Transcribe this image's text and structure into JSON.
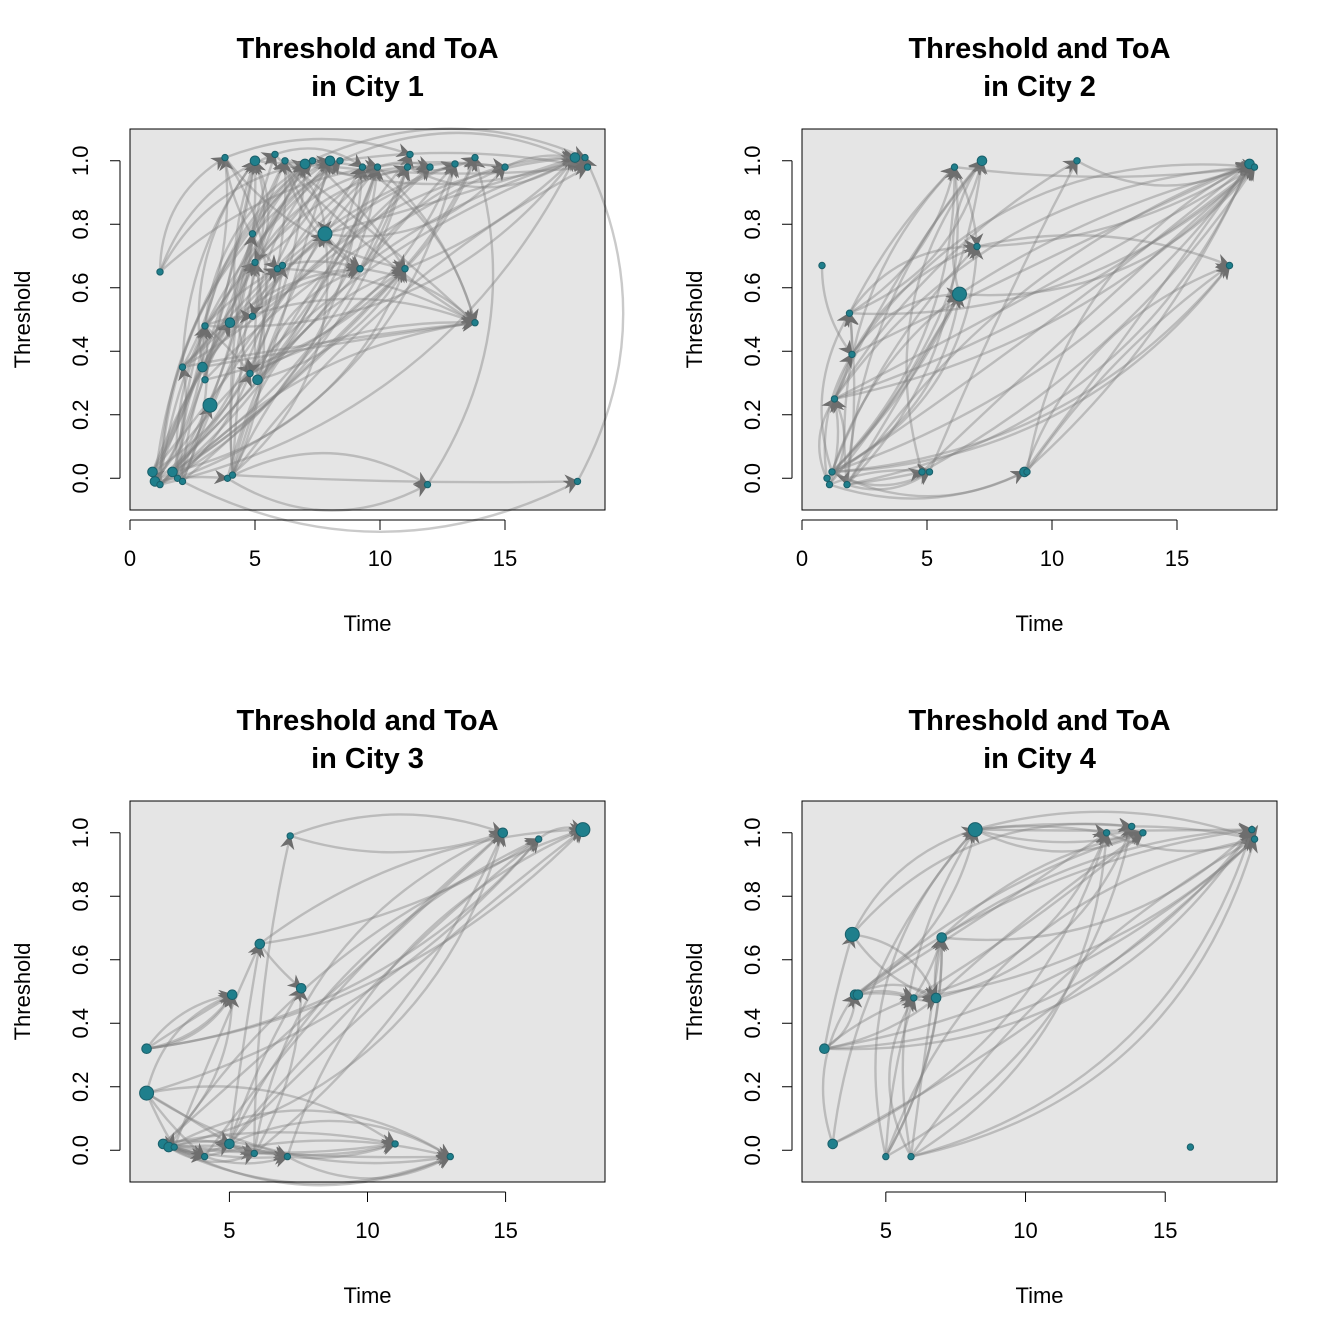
{
  "colors": {
    "panel_bg": "#e5e5e5",
    "edge": "#808080",
    "node": "#1f7f8c",
    "node_stroke": "#1a5f6a"
  },
  "chart_data": [
    {
      "type": "scatter",
      "title": "Threshold and ToA\nin City 1",
      "xlabel": "Time",
      "ylabel": "Threshold",
      "xlim": [
        0,
        19
      ],
      "ylim": [
        -0.1,
        1.1
      ],
      "xticks": [
        0,
        5,
        10,
        15
      ],
      "yticks": [
        0.0,
        0.2,
        0.4,
        0.6,
        0.8,
        1.0
      ],
      "xtick_labels": [
        "0",
        "5",
        "10",
        "15"
      ],
      "ytick_labels": [
        "0.0",
        "0.2",
        "0.4",
        "0.6",
        "0.8",
        "1.0"
      ],
      "grid": false,
      "points": [
        {
          "x": 0.9,
          "y": 0.02,
          "s": 2
        },
        {
          "x": 1.0,
          "y": -0.01,
          "s": 2
        },
        {
          "x": 1.2,
          "y": -0.02,
          "s": 1
        },
        {
          "x": 1.7,
          "y": 0.02,
          "s": 2
        },
        {
          "x": 1.9,
          "y": 0.0,
          "s": 1
        },
        {
          "x": 2.1,
          "y": -0.01,
          "s": 1
        },
        {
          "x": 1.2,
          "y": 0.65,
          "s": 1
        },
        {
          "x": 2.1,
          "y": 0.35,
          "s": 1
        },
        {
          "x": 2.9,
          "y": 0.35,
          "s": 2
        },
        {
          "x": 3.0,
          "y": 0.31,
          "s": 1
        },
        {
          "x": 3.2,
          "y": 0.23,
          "s": 3
        },
        {
          "x": 3.0,
          "y": 0.48,
          "s": 1
        },
        {
          "x": 3.9,
          "y": 0.0,
          "s": 1
        },
        {
          "x": 4.0,
          "y": 0.49,
          "s": 2
        },
        {
          "x": 4.1,
          "y": 0.01,
          "s": 1
        },
        {
          "x": 3.8,
          "y": 1.01,
          "s": 1
        },
        {
          "x": 4.8,
          "y": 0.33,
          "s": 1
        },
        {
          "x": 4.9,
          "y": 0.51,
          "s": 1
        },
        {
          "x": 4.9,
          "y": 0.77,
          "s": 1
        },
        {
          "x": 5.0,
          "y": 0.68,
          "s": 1
        },
        {
          "x": 5.0,
          "y": 1.0,
          "s": 2
        },
        {
          "x": 5.1,
          "y": 0.31,
          "s": 2
        },
        {
          "x": 5.9,
          "y": 0.66,
          "s": 1
        },
        {
          "x": 6.1,
          "y": 0.67,
          "s": 1
        },
        {
          "x": 5.8,
          "y": 1.02,
          "s": 1
        },
        {
          "x": 6.2,
          "y": 1.0,
          "s": 1
        },
        {
          "x": 7.0,
          "y": 0.99,
          "s": 2
        },
        {
          "x": 7.3,
          "y": 1.0,
          "s": 1
        },
        {
          "x": 7.8,
          "y": 0.77,
          "s": 3
        },
        {
          "x": 8.0,
          "y": 1.0,
          "s": 2
        },
        {
          "x": 8.4,
          "y": 1.0,
          "s": 1
        },
        {
          "x": 9.2,
          "y": 0.66,
          "s": 1
        },
        {
          "x": 9.3,
          "y": 0.98,
          "s": 1
        },
        {
          "x": 9.9,
          "y": 0.98,
          "s": 1
        },
        {
          "x": 11.0,
          "y": 0.66,
          "s": 1
        },
        {
          "x": 11.1,
          "y": 0.98,
          "s": 1
        },
        {
          "x": 11.2,
          "y": 1.02,
          "s": 1
        },
        {
          "x": 11.9,
          "y": -0.02,
          "s": 1
        },
        {
          "x": 12.0,
          "y": 0.98,
          "s": 1
        },
        {
          "x": 13.0,
          "y": 0.99,
          "s": 1
        },
        {
          "x": 13.8,
          "y": 1.01,
          "s": 1
        },
        {
          "x": 13.8,
          "y": 0.49,
          "s": 1
        },
        {
          "x": 15.0,
          "y": 0.98,
          "s": 1
        },
        {
          "x": 17.8,
          "y": 1.01,
          "s": 2
        },
        {
          "x": 18.2,
          "y": 1.01,
          "s": 1
        },
        {
          "x": 18.3,
          "y": 0.98,
          "s": 1
        },
        {
          "x": 17.9,
          "y": -0.01,
          "s": 1
        }
      ]
    },
    {
      "type": "scatter",
      "title": "Threshold and ToA\nin City 2",
      "xlabel": "Time",
      "ylabel": "Threshold",
      "xlim": [
        0,
        19
      ],
      "ylim": [
        -0.1,
        1.1
      ],
      "xticks": [
        0,
        5,
        10,
        15
      ],
      "yticks": [
        0.0,
        0.2,
        0.4,
        0.6,
        0.8,
        1.0
      ],
      "xtick_labels": [
        "0",
        "5",
        "10",
        "15"
      ],
      "ytick_labels": [
        "0.0",
        "0.2",
        "0.4",
        "0.6",
        "0.8",
        "1.0"
      ],
      "grid": false,
      "points": [
        {
          "x": 0.8,
          "y": 0.67,
          "s": 1
        },
        {
          "x": 1.0,
          "y": 0.0,
          "s": 1
        },
        {
          "x": 1.1,
          "y": -0.02,
          "s": 1
        },
        {
          "x": 1.2,
          "y": 0.02,
          "s": 1
        },
        {
          "x": 1.3,
          "y": 0.25,
          "s": 1
        },
        {
          "x": 1.8,
          "y": -0.02,
          "s": 1
        },
        {
          "x": 1.9,
          "y": 0.52,
          "s": 1
        },
        {
          "x": 2.0,
          "y": 0.39,
          "s": 1
        },
        {
          "x": 4.8,
          "y": 0.02,
          "s": 1
        },
        {
          "x": 5.1,
          "y": 0.02,
          "s": 1
        },
        {
          "x": 6.1,
          "y": 0.98,
          "s": 1
        },
        {
          "x": 6.3,
          "y": 0.58,
          "s": 3
        },
        {
          "x": 7.0,
          "y": 0.73,
          "s": 1
        },
        {
          "x": 7.2,
          "y": 1.0,
          "s": 2
        },
        {
          "x": 8.9,
          "y": 0.02,
          "s": 2
        },
        {
          "x": 9.0,
          "y": 0.02,
          "s": 1
        },
        {
          "x": 11.0,
          "y": 1.0,
          "s": 1
        },
        {
          "x": 17.1,
          "y": 0.67,
          "s": 1
        },
        {
          "x": 17.9,
          "y": 0.99,
          "s": 2
        },
        {
          "x": 18.1,
          "y": 0.98,
          "s": 1
        }
      ]
    },
    {
      "type": "scatter",
      "title": "Threshold and ToA\nin City 3",
      "xlabel": "Time",
      "ylabel": "Threshold",
      "xlim": [
        1.4,
        18.6
      ],
      "ylim": [
        -0.1,
        1.1
      ],
      "xticks": [
        5,
        10,
        15
      ],
      "yticks": [
        0.0,
        0.2,
        0.4,
        0.6,
        0.8,
        1.0
      ],
      "xtick_labels": [
        "5",
        "10",
        "15"
      ],
      "ytick_labels": [
        "0.0",
        "0.2",
        "0.4",
        "0.6",
        "0.8",
        "1.0"
      ],
      "grid": false,
      "points": [
        {
          "x": 2.0,
          "y": 0.32,
          "s": 2
        },
        {
          "x": 2.0,
          "y": 0.18,
          "s": 3
        },
        {
          "x": 2.6,
          "y": 0.02,
          "s": 2
        },
        {
          "x": 2.8,
          "y": 0.01,
          "s": 2
        },
        {
          "x": 3.0,
          "y": 0.01,
          "s": 1
        },
        {
          "x": 4.1,
          "y": -0.02,
          "s": 1
        },
        {
          "x": 5.0,
          "y": 0.02,
          "s": 2
        },
        {
          "x": 5.1,
          "y": 0.49,
          "s": 2
        },
        {
          "x": 5.9,
          "y": -0.01,
          "s": 1
        },
        {
          "x": 6.1,
          "y": 0.65,
          "s": 2
        },
        {
          "x": 7.1,
          "y": -0.02,
          "s": 1
        },
        {
          "x": 7.2,
          "y": 0.99,
          "s": 1
        },
        {
          "x": 7.6,
          "y": 0.51,
          "s": 2
        },
        {
          "x": 11.0,
          "y": 0.02,
          "s": 1
        },
        {
          "x": 13.0,
          "y": -0.02,
          "s": 1
        },
        {
          "x": 14.9,
          "y": 1.0,
          "s": 2
        },
        {
          "x": 16.2,
          "y": 0.98,
          "s": 1
        },
        {
          "x": 17.8,
          "y": 1.01,
          "s": 3
        }
      ]
    },
    {
      "type": "scatter",
      "title": "Threshold and ToA\nin City 4",
      "xlabel": "Time",
      "ylabel": "Threshold",
      "xlim": [
        2.0,
        19.0
      ],
      "ylim": [
        -0.1,
        1.1
      ],
      "xticks": [
        5,
        10,
        15
      ],
      "yticks": [
        0.0,
        0.2,
        0.4,
        0.6,
        0.8,
        1.0
      ],
      "xtick_labels": [
        "5",
        "10",
        "15"
      ],
      "ytick_labels": [
        "0.0",
        "0.2",
        "0.4",
        "0.6",
        "0.8",
        "1.0"
      ],
      "grid": false,
      "points": [
        {
          "x": 2.8,
          "y": 0.32,
          "s": 2
        },
        {
          "x": 3.1,
          "y": 0.02,
          "s": 2
        },
        {
          "x": 3.8,
          "y": 0.68,
          "s": 3
        },
        {
          "x": 3.9,
          "y": 0.49,
          "s": 2
        },
        {
          "x": 4.0,
          "y": 0.49,
          "s": 2
        },
        {
          "x": 5.0,
          "y": -0.02,
          "s": 1
        },
        {
          "x": 5.9,
          "y": -0.02,
          "s": 1
        },
        {
          "x": 6.0,
          "y": 0.48,
          "s": 1
        },
        {
          "x": 6.8,
          "y": 0.48,
          "s": 2
        },
        {
          "x": 7.0,
          "y": 0.67,
          "s": 2
        },
        {
          "x": 8.2,
          "y": 1.01,
          "s": 3
        },
        {
          "x": 12.9,
          "y": 1.0,
          "s": 1
        },
        {
          "x": 13.8,
          "y": 1.02,
          "s": 1
        },
        {
          "x": 14.2,
          "y": 1.0,
          "s": 1
        },
        {
          "x": 15.9,
          "y": 0.01,
          "s": 1
        },
        {
          "x": 18.1,
          "y": 1.01,
          "s": 1
        },
        {
          "x": 18.2,
          "y": 0.98,
          "s": 1
        }
      ]
    }
  ]
}
